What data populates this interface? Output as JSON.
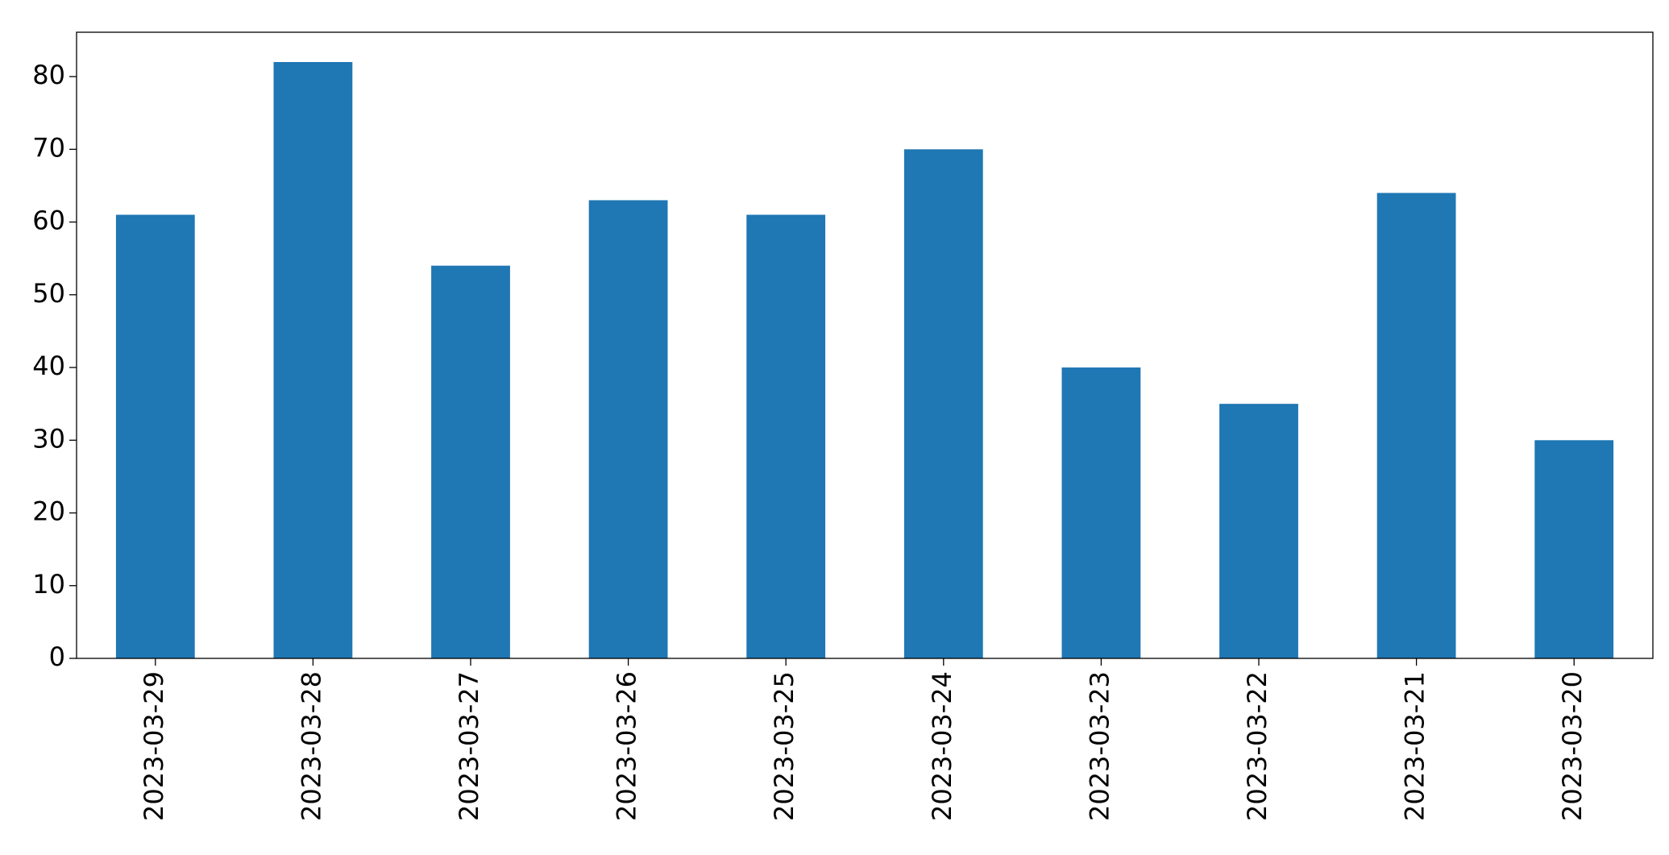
{
  "chart_data": {
    "type": "bar",
    "categories": [
      "2023-03-29",
      "2023-03-28",
      "2023-03-27",
      "2023-03-26",
      "2023-03-25",
      "2023-03-24",
      "2023-03-23",
      "2023-03-22",
      "2023-03-21",
      "2023-03-20"
    ],
    "values": [
      61,
      82,
      54,
      63,
      61,
      70,
      40,
      35,
      64,
      30
    ],
    "color": "#1f77b4",
    "ylim": [
      0,
      86.1
    ],
    "yticks": [
      0,
      10,
      20,
      30,
      40,
      50,
      60,
      70,
      80
    ],
    "grid": false
  }
}
